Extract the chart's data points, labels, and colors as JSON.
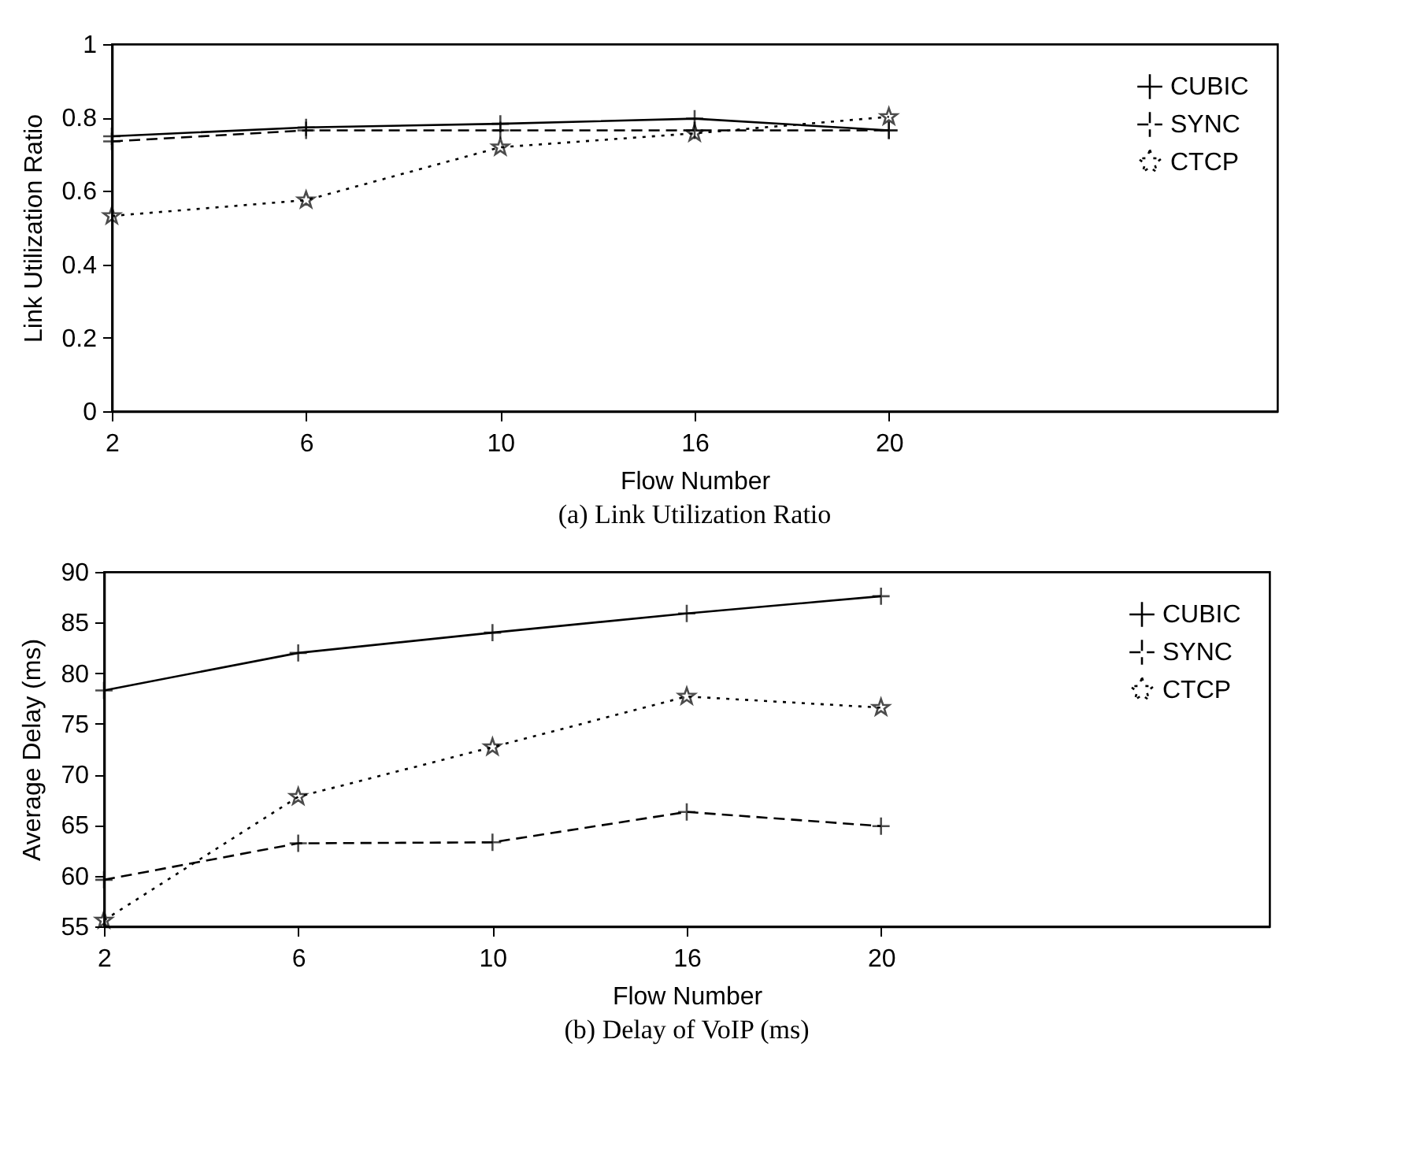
{
  "chart_data": [
    {
      "type": "line",
      "title": "(a) Link Utilization Ratio",
      "xlabel": "Flow Number",
      "ylabel": "Link Utilization Ratio",
      "categories": [
        "2",
        "6",
        "10",
        "16",
        "20",
        null,
        null
      ],
      "ylim": [
        0,
        1
      ],
      "yticks": [
        0,
        0.2,
        0.4,
        0.6,
        0.8,
        1
      ],
      "grid": false,
      "legend": "top right",
      "series": [
        {
          "name": "CUBIC",
          "color": "#000000",
          "line_style": "solid",
          "marker": "cross",
          "values": [
            0.749,
            0.773,
            0.783,
            0.797,
            0.765,
            null,
            null
          ]
        },
        {
          "name": "SYNC",
          "color": "#000000",
          "line_style": "dashed",
          "marker": "cross",
          "values": [
            0.735,
            0.765,
            0.765,
            0.765,
            0.765,
            null,
            null
          ]
        },
        {
          "name": "CTCP",
          "color": "#000000",
          "line_style": "dotted",
          "marker": "star",
          "values": [
            0.532,
            0.575,
            0.719,
            0.757,
            0.802,
            null,
            null
          ]
        }
      ]
    },
    {
      "type": "line",
      "title": "(b) Delay of VoIP (ms)",
      "xlabel": "Flow Number",
      "ylabel": "Average Delay (ms)",
      "categories": [
        "2",
        "6",
        "10",
        "16",
        "20",
        null,
        null
      ],
      "ylim": [
        55,
        90
      ],
      "yticks": [
        55,
        60,
        65,
        70,
        75,
        80,
        85,
        90
      ],
      "grid": false,
      "legend": "top right",
      "series": [
        {
          "name": "CUBIC",
          "color": "#000000",
          "line_style": "solid",
          "marker": "cross",
          "values": [
            78.3,
            82.0,
            84.0,
            85.9,
            87.6,
            null,
            null
          ]
        },
        {
          "name": "SYNC",
          "color": "#000000",
          "line_style": "dashed",
          "marker": "cross",
          "values": [
            59.6,
            63.2,
            63.3,
            66.3,
            64.9,
            null,
            null
          ]
        },
        {
          "name": "CTCP",
          "color": "#000000",
          "line_style": "dotted",
          "marker": "star",
          "values": [
            55.6,
            67.8,
            72.7,
            77.7,
            76.6,
            null,
            null
          ]
        }
      ]
    }
  ]
}
